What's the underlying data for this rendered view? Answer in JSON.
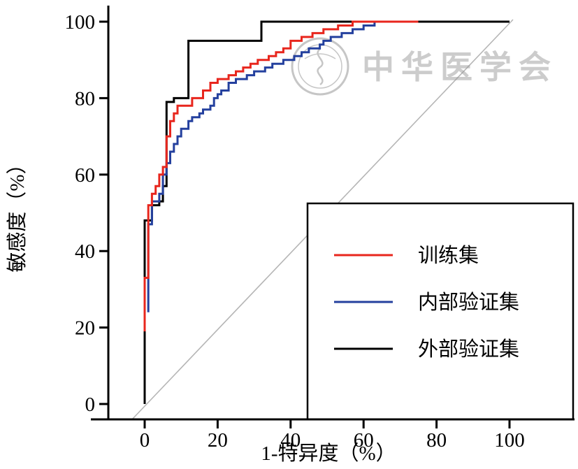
{
  "figure": {
    "background": "#ffffff"
  },
  "watermark": {
    "text": "中华医学会"
  },
  "chart_data": {
    "type": "line",
    "subtype": "roc-step-curves",
    "title": "",
    "xlabel": "1-特异度（%）",
    "ylabel": "敏感度（%）",
    "xlim": [
      0,
      100
    ],
    "ylim": [
      0,
      100
    ],
    "x_ticks": [
      0,
      20,
      40,
      60,
      80,
      100
    ],
    "y_ticks": [
      0,
      20,
      40,
      60,
      80,
      100
    ],
    "grid": false,
    "legend_position": "lower-right",
    "reference_line": {
      "type": "diagonal",
      "from": [
        0,
        0
      ],
      "to": [
        100,
        100
      ],
      "color": "#b5b5b5"
    },
    "series": [
      {
        "name": "训练集",
        "color": "#e8261d",
        "step": "hv",
        "points": [
          [
            0,
            19
          ],
          [
            0,
            33
          ],
          [
            1,
            44
          ],
          [
            1,
            52
          ],
          [
            2,
            55
          ],
          [
            3,
            57
          ],
          [
            4,
            60
          ],
          [
            5,
            62
          ],
          [
            6,
            65
          ],
          [
            6,
            70
          ],
          [
            7,
            74
          ],
          [
            8,
            76
          ],
          [
            9,
            78
          ],
          [
            13,
            80
          ],
          [
            16,
            82
          ],
          [
            18,
            84
          ],
          [
            20,
            85
          ],
          [
            23,
            86
          ],
          [
            25,
            87
          ],
          [
            27,
            88
          ],
          [
            29,
            89
          ],
          [
            31,
            90
          ],
          [
            34,
            91
          ],
          [
            36,
            92
          ],
          [
            38,
            93
          ],
          [
            40,
            95
          ],
          [
            43,
            96
          ],
          [
            46,
            97
          ],
          [
            49,
            98
          ],
          [
            53,
            99
          ],
          [
            57,
            100
          ],
          [
            75,
            100
          ]
        ]
      },
      {
        "name": "内部验证集",
        "color": "#24409e",
        "step": "hv",
        "points": [
          [
            1,
            24
          ],
          [
            1,
            43
          ],
          [
            1,
            47
          ],
          [
            2,
            49
          ],
          [
            2,
            53
          ],
          [
            4,
            55
          ],
          [
            5,
            57
          ],
          [
            5,
            60
          ],
          [
            6,
            63
          ],
          [
            7,
            66
          ],
          [
            8,
            68
          ],
          [
            9,
            70
          ],
          [
            10,
            72
          ],
          [
            12,
            74
          ],
          [
            13,
            75
          ],
          [
            15,
            76
          ],
          [
            16,
            77
          ],
          [
            18,
            78
          ],
          [
            19,
            80
          ],
          [
            20,
            81
          ],
          [
            21,
            82
          ],
          [
            23,
            84
          ],
          [
            25,
            85
          ],
          [
            28,
            86
          ],
          [
            30,
            87
          ],
          [
            33,
            88
          ],
          [
            35,
            89
          ],
          [
            38,
            90
          ],
          [
            41,
            91
          ],
          [
            43,
            92
          ],
          [
            45,
            93
          ],
          [
            48,
            94
          ],
          [
            49,
            95
          ],
          [
            51,
            96
          ],
          [
            54,
            97
          ],
          [
            57,
            98
          ],
          [
            60,
            99
          ],
          [
            63,
            100
          ],
          [
            65,
            100
          ]
        ]
      },
      {
        "name": "外部验证集",
        "color": "#000000",
        "step": "hv",
        "points": [
          [
            0,
            0
          ],
          [
            0,
            48
          ],
          [
            2,
            52
          ],
          [
            4,
            53
          ],
          [
            5,
            57
          ],
          [
            6,
            79
          ],
          [
            8,
            80
          ],
          [
            12,
            95
          ],
          [
            32,
            100
          ],
          [
            100,
            100
          ]
        ]
      }
    ]
  }
}
